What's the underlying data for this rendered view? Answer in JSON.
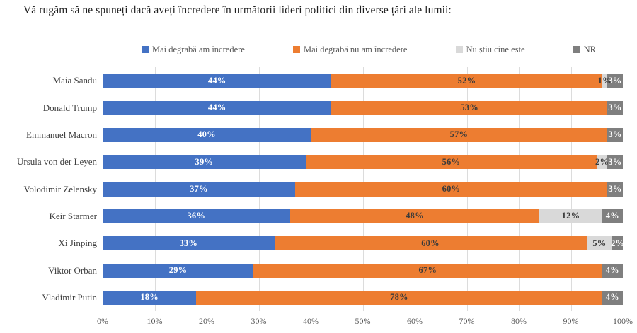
{
  "chart_data": {
    "type": "bar",
    "orientation": "horizontal",
    "stacked": true,
    "title": "Vă rugăm să ne spuneți dacă aveți încredere în următorii lideri politici din diverse țări ale lumii:",
    "categories": [
      "Maia Sandu",
      "Donald Trump",
      "Emmanuel Macron",
      "Ursula von der Leyen",
      "Volodimir Zelensky",
      "Keir Starmer",
      "Xi Jinping",
      "Viktor Orban",
      "Vladimir Putin"
    ],
    "series": [
      {
        "name": "Mai degrabă am încredere",
        "color": "#4472C4",
        "label_color": "#ffffff",
        "values": [
          44,
          44,
          40,
          39,
          37,
          36,
          33,
          29,
          18
        ]
      },
      {
        "name": "Mai degrabă nu am încredere",
        "color": "#ED7D31",
        "label_color": "#3b3b3b",
        "values": [
          52,
          53,
          57,
          56,
          60,
          48,
          60,
          67,
          78
        ]
      },
      {
        "name": "Nu știu cine este",
        "color": "#D9D9D9",
        "label_color": "#3b3b3b",
        "values": [
          1,
          0,
          0,
          2,
          0,
          12,
          5,
          0,
          0
        ]
      },
      {
        "name": "NR",
        "color": "#7F7F7F",
        "label_color": "#ffffff",
        "values": [
          3,
          3,
          3,
          3,
          3,
          4,
          2,
          4,
          4
        ]
      }
    ],
    "x_ticks": [
      "0%",
      "10%",
      "20%",
      "30%",
      "40%",
      "50%",
      "60%",
      "70%",
      "80%",
      "90%",
      "100%"
    ],
    "xlim": [
      0,
      100
    ],
    "grid": "vertical",
    "legend_position": "top",
    "value_suffix": "%"
  }
}
